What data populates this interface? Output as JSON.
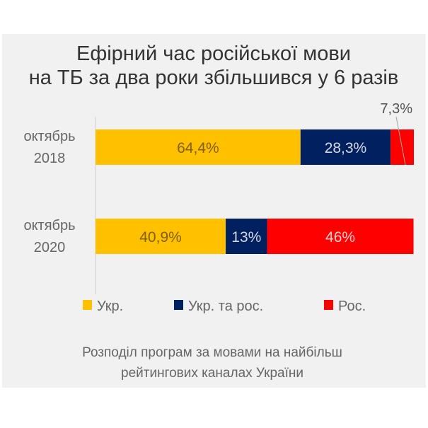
{
  "chart_data": {
    "type": "bar",
    "orientation": "horizontal",
    "stacked": true,
    "title": [
      "Ефірний час російської мови",
      "на ТБ за два роки збільшився у 6 разів"
    ],
    "categories": [
      [
        "октябрь",
        "2018"
      ],
      [
        "октябрь",
        "2020"
      ]
    ],
    "series": [
      {
        "name": "Укр.",
        "color": "#FFC000",
        "values": [
          64.4,
          40.9
        ],
        "labels": [
          "64,4%",
          "40,9%"
        ]
      },
      {
        "name": "Укр. та рос.",
        "color": "#002060",
        "values": [
          28.3,
          13
        ],
        "labels": [
          "28,3%",
          "13%"
        ]
      },
      {
        "name": "Рос.",
        "color": "#FF0000",
        "values": [
          7.3,
          46
        ],
        "labels": [
          "7,3%",
          "46%"
        ]
      }
    ],
    "xlim": [
      0,
      100
    ],
    "legend": "bottom",
    "grid": false,
    "caption": [
      "Розподіл програм за мовами на найбільш",
      "рейтингових каналах України"
    ]
  }
}
